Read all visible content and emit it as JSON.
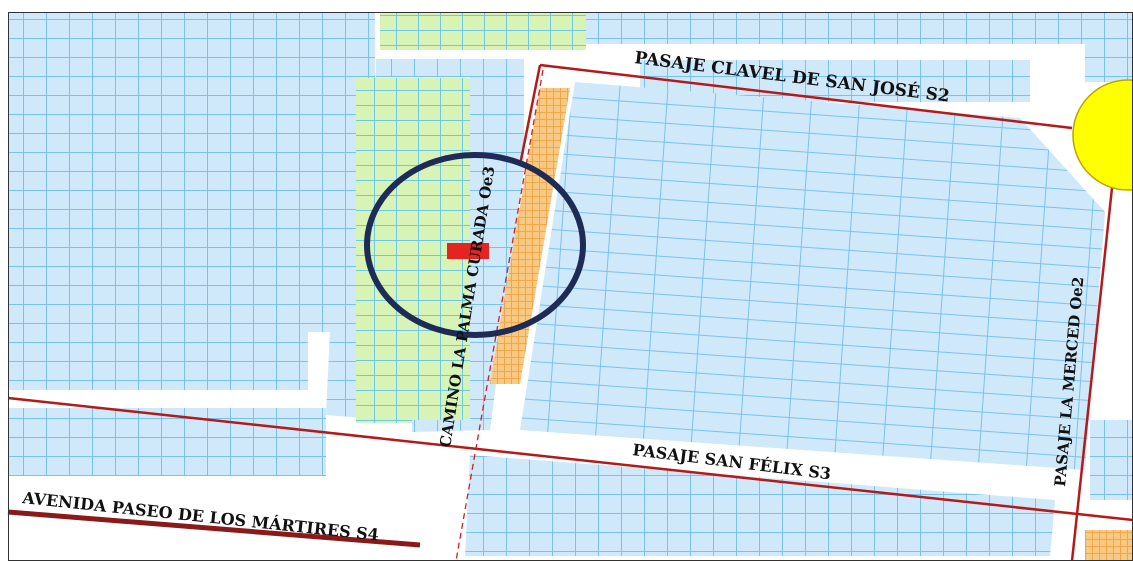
{
  "map": {
    "colors": {
      "background": "#ffffff",
      "block_fill": "#cfe8fa",
      "block_line": "#79c2ee",
      "green_fill": "#d7f4b6",
      "green_line": "#6fc7e8",
      "orange_fill": "#f7c983",
      "orange_line": "#f0a64a",
      "road_line": "#b31b1b",
      "dashed_line": "#cc2222",
      "marker": "#e42323",
      "circle": "#1e2b55",
      "yellow": "#ffff00",
      "frame": "#333333"
    },
    "streets": {
      "clavel": "PASAJE CLAVEL DE SAN JOSÉ S2",
      "san_felix": "PASAJE SAN FÉLIX S3",
      "martires": "AVENIDA PASEO DE LOS MÁRTIRES S4",
      "merced": "PASAJE LA MERCED Oe2",
      "camino": "CAMINO LA PALMA CURADA Oe3"
    },
    "marker_name": "selected-lot-marker",
    "highlight_name": "location-highlight-circle"
  }
}
